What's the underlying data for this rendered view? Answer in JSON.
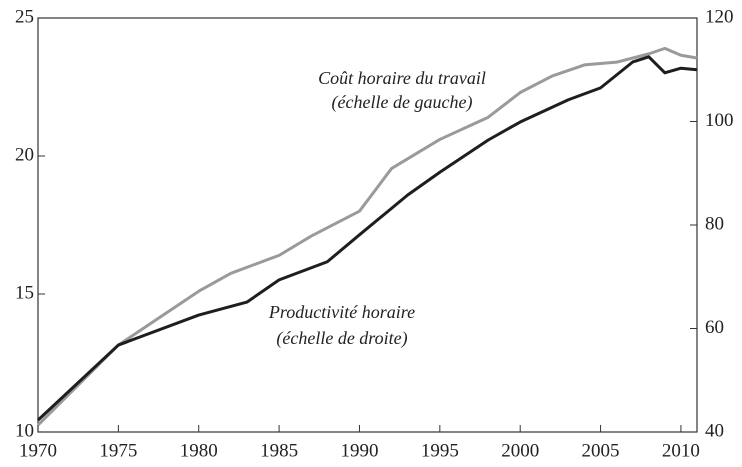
{
  "chart_data": {
    "type": "line",
    "annotations": [
      "Coût horaire du travail",
      "(échelle de gauche)",
      "Productivité horaire",
      "(échelle de droite)"
    ],
    "xlim": [
      1970,
      2011
    ],
    "xticks": [
      1970,
      1975,
      1980,
      1985,
      1990,
      1995,
      2000,
      2005,
      2010
    ],
    "ylim": [
      10,
      25
    ],
    "yticks": [
      10,
      15,
      20,
      25
    ],
    "y2lim": [
      40,
      120
    ],
    "y2ticks": [
      40,
      60,
      80,
      100,
      120
    ],
    "series": [
      {
        "name": "Coût horaire du travail",
        "color": "#9a9a9a",
        "axis": "y",
        "x": [
          1970,
          1975,
          1980,
          1982,
          1985,
          1987,
          1990,
          1992,
          1995,
          1998,
          2000,
          2002,
          2004,
          2006,
          2008,
          2009,
          2010,
          2011
        ],
        "values": [
          10.25,
          13.15,
          15.1,
          15.75,
          16.4,
          17.1,
          18.0,
          19.55,
          20.6,
          21.4,
          22.3,
          22.9,
          23.3,
          23.4,
          23.7,
          23.9,
          23.65,
          23.55
        ]
      },
      {
        "name": "Productivité horaire",
        "color": "#1e1e1e",
        "axis": "y2",
        "x": [
          1970,
          1975,
          1980,
          1983,
          1985,
          1988,
          1990,
          1993,
          1995,
          1998,
          2000,
          2003,
          2005,
          2007,
          2008,
          2009,
          2010,
          2011
        ],
        "values": [
          42.3,
          56.8,
          62.6,
          65.1,
          69.4,
          72.9,
          78.1,
          85.8,
          90.2,
          96.4,
          99.9,
          104.2,
          106.5,
          111.5,
          112.5,
          109.4,
          110.3,
          110
        ]
      }
    ]
  }
}
